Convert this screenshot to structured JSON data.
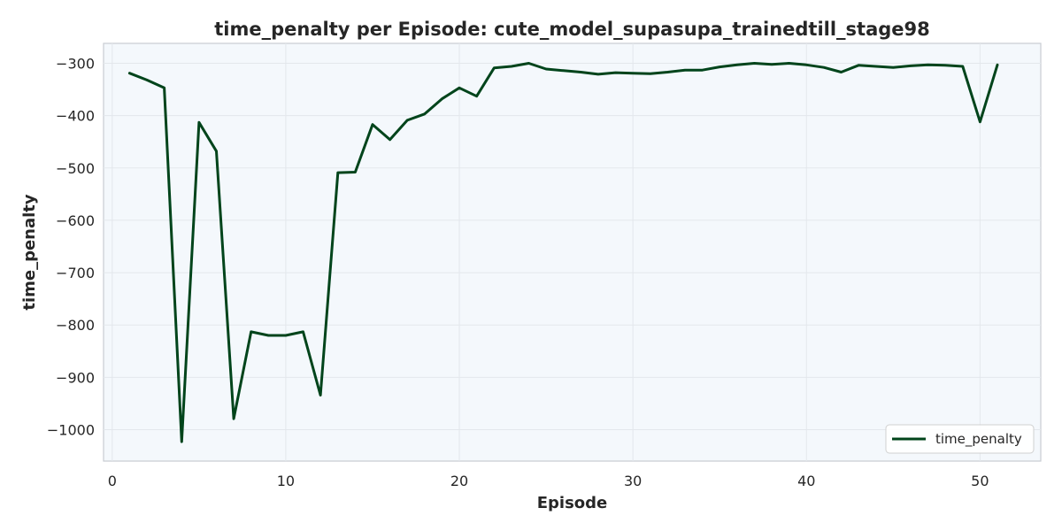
{
  "chart_data": {
    "type": "line",
    "title": "time_penalty per Episode: cute_model_supasupa_trainedtill_stage98",
    "xlabel": "Episode",
    "ylabel": "time_penalty",
    "xlim": [
      -0.5,
      53.5
    ],
    "ylim": [
      -1060,
      -262
    ],
    "xticks": [
      0,
      10,
      20,
      30,
      40,
      50
    ],
    "yticks": [
      -1000,
      -900,
      -800,
      -700,
      -600,
      -500,
      -400,
      -300
    ],
    "grid": true,
    "legend_position": "bottom-right",
    "series": [
      {
        "name": "time_penalty",
        "color": "#00441b",
        "x": [
          1,
          2,
          3,
          4,
          5,
          6,
          7,
          8,
          9,
          10,
          11,
          12,
          13,
          14,
          15,
          16,
          17,
          18,
          19,
          20,
          21,
          22,
          23,
          24,
          25,
          26,
          27,
          28,
          29,
          30,
          31,
          32,
          33,
          34,
          35,
          36,
          37,
          38,
          39,
          40,
          41,
          42,
          43,
          44,
          45,
          46,
          47,
          48,
          49,
          50,
          51
        ],
        "y": [
          -319,
          -332,
          -347,
          -1023,
          -413,
          -468,
          -979,
          -813,
          -820,
          -820,
          -813,
          -934,
          -509,
          -508,
          -417,
          -446,
          -409,
          -397,
          -368,
          -347,
          -363,
          -309,
          -306,
          -300,
          -311,
          -314,
          -317,
          -321,
          -318,
          -319,
          -320,
          -317,
          -313,
          -313,
          -307,
          -303,
          -300,
          -302,
          -300,
          -303,
          -308,
          -317,
          -304,
          -306,
          -308,
          -305,
          -303,
          -304,
          -306,
          -412,
          -303
        ]
      }
    ]
  }
}
